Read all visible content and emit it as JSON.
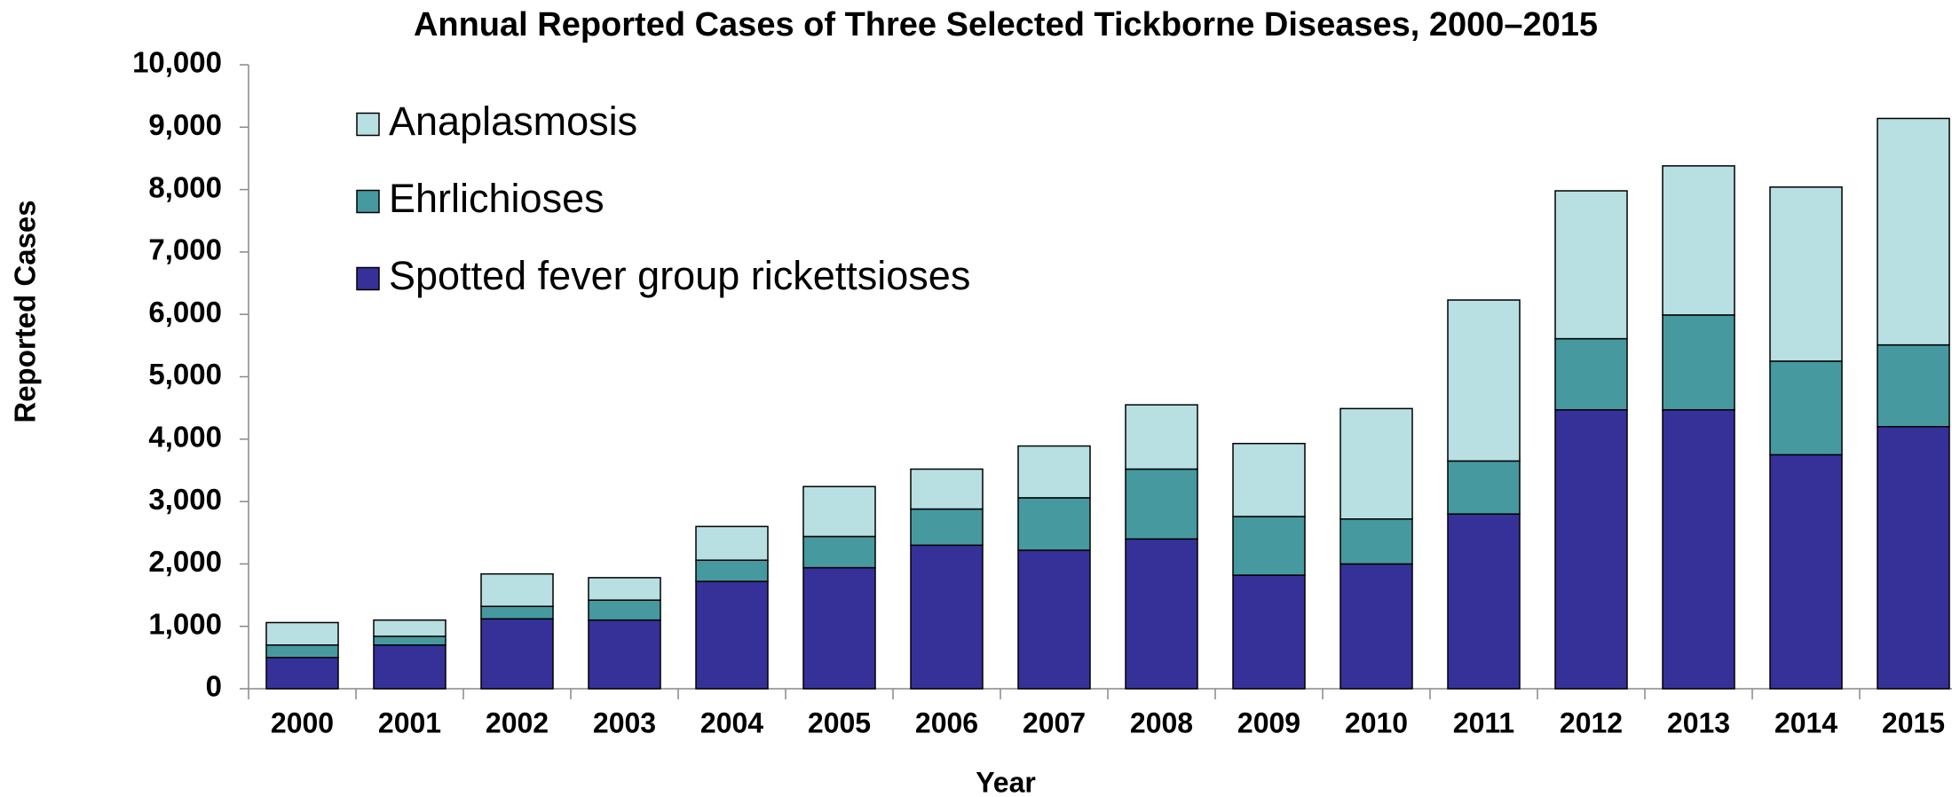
{
  "chart_data": {
    "type": "stacked-bar",
    "title": "Annual Reported Cases of Three Selected Tickborne Diseases, 2000–2015",
    "x_label": "Year",
    "y_label": "Reported Cases",
    "categories": [
      "2000",
      "2001",
      "2002",
      "2003",
      "2004",
      "2005",
      "2006",
      "2007",
      "2008",
      "2009",
      "2010",
      "2011",
      "2012",
      "2013",
      "2014",
      "2015"
    ],
    "series": [
      {
        "name": "Spotted fever group rickettsioses",
        "color": "#353199",
        "values": [
          500,
          700,
          1120,
          1100,
          1720,
          1940,
          2300,
          2220,
          2400,
          1820,
          2000,
          2800,
          4470,
          4470,
          3750,
          4200
        ]
      },
      {
        "name": "Ehrlichioses",
        "color": "#46999e",
        "values": [
          200,
          140,
          200,
          320,
          340,
          500,
          580,
          840,
          1120,
          940,
          720,
          850,
          1140,
          1520,
          1500,
          1310
        ]
      },
      {
        "name": "Anaplasmosis",
        "color": "#b8dfe2",
        "values": [
          360,
          260,
          520,
          360,
          540,
          800,
          640,
          830,
          1030,
          1170,
          1770,
          2580,
          2370,
          2390,
          2790,
          3630
        ]
      }
    ],
    "ylim": [
      0,
      10000
    ],
    "yticks": [
      0,
      {
        "value": 1000,
        "label": "1,000"
      },
      {
        "value": 2000,
        "label": "2,000"
      },
      {
        "value": 3000,
        "label": "3,000"
      },
      {
        "value": 4000,
        "label": "4,000"
      },
      {
        "value": 5000,
        "label": "5,000"
      },
      {
        "value": 6000,
        "label": "6,000"
      },
      {
        "value": 7000,
        "label": "7,000"
      },
      {
        "value": 8000,
        "label": "8,000"
      },
      {
        "value": 9000,
        "label": "9,000"
      },
      {
        "value": 10000,
        "label": "10,000"
      }
    ],
    "legend": "upper-left",
    "grid": false
  }
}
